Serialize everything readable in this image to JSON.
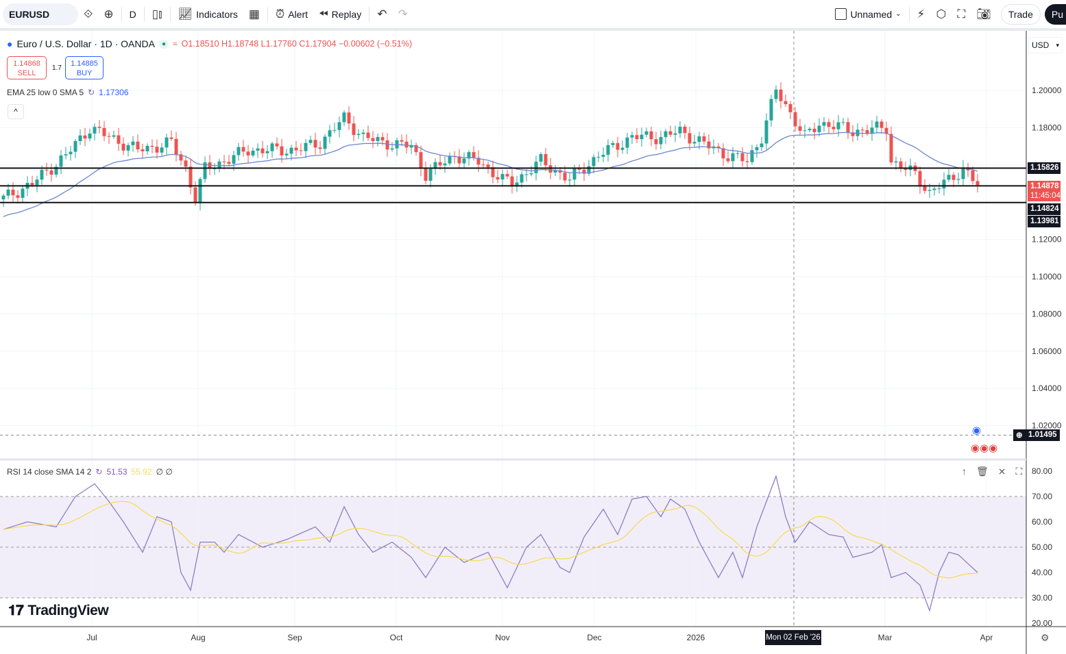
{
  "toolbar": {
    "symbol": "EURUSD",
    "interval": "D",
    "indicators_label": "Indicators",
    "alert_label": "Alert",
    "replay_label": "Replay",
    "layout_name": "Unnamed",
    "trade_label": "Trade",
    "publish_label": "Pu"
  },
  "legend": {
    "title": "Euro / U.S. Dollar · 1D · OANDA",
    "ohlc": "O1.18510 H1.18748 L1.17760 C1.17904 −0.00602 (−0.51%)",
    "sell_price": "1.14868",
    "sell_label": "SELL",
    "buy_price": "1.14885",
    "buy_label": "BUY",
    "spread": "1.7",
    "ema_label": "EMA 25 low 0 SMA 5",
    "ema_value": "1.17306",
    "rsi_label": "RSI 14 close SMA 14 2",
    "rsi_value": "51.53",
    "rsi_sma_value": "55.92",
    "rsi_extra": "∅ ∅"
  },
  "price_axis": {
    "currency": "USD",
    "ticks": [
      "1.20000",
      "1.18000",
      "1.12000",
      "1.10000",
      "1.08000",
      "1.06000",
      "1.04000",
      "1.02000"
    ],
    "tags": {
      "line1": "1.15826",
      "current": "1.14878",
      "countdown": "11:45:04",
      "line2": "1.14824",
      "line3": "1.13981",
      "crosshair": "1.01495"
    }
  },
  "rsi_axis": {
    "ticks": [
      "80.00",
      "70.00",
      "60.00",
      "50.00",
      "40.00",
      "30.00",
      "20.00"
    ]
  },
  "time_axis": {
    "ticks": [
      "Jul",
      "Aug",
      "Sep",
      "Oct",
      "Nov",
      "Dec",
      "2026",
      "Mar",
      "Apr"
    ],
    "crosshair_label": "Mon 02 Feb '26"
  },
  "branding": {
    "logo_text": "TradingView"
  },
  "colors": {
    "up": "#26a69a",
    "down": "#ef5350",
    "ema": "#6b86cf",
    "rsi": "#8e7cc3",
    "rsi_sma": "#f5dc5a"
  },
  "chart_data": {
    "type": "candlestick",
    "x_unit": "trading day index",
    "price_anchors": [
      [
        0,
        1.142
      ],
      [
        6,
        1.15
      ],
      [
        13,
        1.165
      ],
      [
        18,
        1.18
      ],
      [
        22,
        1.175
      ],
      [
        28,
        1.168
      ],
      [
        32,
        1.17
      ],
      [
        35,
        1.172
      ],
      [
        38,
        1.158
      ],
      [
        40,
        1.142
      ],
      [
        42,
        1.158
      ],
      [
        46,
        1.162
      ],
      [
        51,
        1.168
      ],
      [
        56,
        1.168
      ],
      [
        61,
        1.168
      ],
      [
        66,
        1.172
      ],
      [
        71,
        1.185
      ],
      [
        75,
        1.175
      ],
      [
        79,
        1.172
      ],
      [
        85,
        1.17
      ],
      [
        88,
        1.155
      ],
      [
        94,
        1.165
      ],
      [
        99,
        1.162
      ],
      [
        104,
        1.152
      ],
      [
        106,
        1.15
      ],
      [
        112,
        1.162
      ],
      [
        118,
        1.152
      ],
      [
        124,
        1.165
      ],
      [
        131,
        1.175
      ],
      [
        137,
        1.175
      ],
      [
        141,
        1.178
      ],
      [
        147,
        1.17
      ],
      [
        151,
        1.165
      ],
      [
        155,
        1.162
      ],
      [
        158,
        1.175
      ],
      [
        161,
        1.2
      ],
      [
        164,
        1.188
      ],
      [
        167,
        1.175
      ],
      [
        170,
        1.182
      ],
      [
        172,
        1.182
      ],
      [
        177,
        1.178
      ],
      [
        184,
        1.18
      ],
      [
        185,
        1.162
      ],
      [
        190,
        1.155
      ],
      [
        193,
        1.145
      ],
      [
        197,
        1.152
      ],
      [
        200,
        1.158
      ],
      [
        203,
        1.149
      ]
    ],
    "horizontal_lines": [
      1.15826,
      1.14878,
      1.13981,
      1.01495
    ],
    "ema_period": 25,
    "rsi_anchors": [
      [
        0,
        57
      ],
      [
        5,
        60
      ],
      [
        11,
        58
      ],
      [
        15,
        70
      ],
      [
        19,
        75
      ],
      [
        22,
        68
      ],
      [
        25,
        60
      ],
      [
        29,
        48
      ],
      [
        32,
        62
      ],
      [
        35,
        60
      ],
      [
        37,
        40
      ],
      [
        39,
        33
      ],
      [
        41,
        52
      ],
      [
        44,
        52
      ],
      [
        46,
        48
      ],
      [
        49,
        55
      ],
      [
        54,
        50
      ],
      [
        59,
        53
      ],
      [
        65,
        58
      ],
      [
        68,
        52
      ],
      [
        71,
        66
      ],
      [
        74,
        55
      ],
      [
        77,
        48
      ],
      [
        81,
        52
      ],
      [
        85,
        46
      ],
      [
        88,
        38
      ],
      [
        92,
        50
      ],
      [
        96,
        44
      ],
      [
        101,
        48
      ],
      [
        105,
        34
      ],
      [
        109,
        50
      ],
      [
        112,
        55
      ],
      [
        116,
        42
      ],
      [
        118,
        40
      ],
      [
        121,
        54
      ],
      [
        125,
        65
      ],
      [
        128,
        55
      ],
      [
        131,
        69
      ],
      [
        134,
        70
      ],
      [
        137,
        62
      ],
      [
        139,
        69
      ],
      [
        142,
        65
      ],
      [
        145,
        52
      ],
      [
        149,
        38
      ],
      [
        152,
        48
      ],
      [
        154,
        38
      ],
      [
        157,
        58
      ],
      [
        161,
        78
      ],
      [
        163,
        62
      ],
      [
        165,
        52
      ],
      [
        168,
        60
      ],
      [
        172,
        55
      ],
      [
        175,
        54
      ],
      [
        177,
        46
      ],
      [
        181,
        48
      ],
      [
        183,
        51
      ],
      [
        185,
        38
      ],
      [
        188,
        40
      ],
      [
        191,
        35
      ],
      [
        193,
        25
      ],
      [
        195,
        40
      ],
      [
        197,
        48
      ],
      [
        199,
        47
      ],
      [
        203,
        40
      ]
    ],
    "rsi_range": [
      20,
      80
    ],
    "price_range": [
      1.0,
      1.21
    ]
  }
}
